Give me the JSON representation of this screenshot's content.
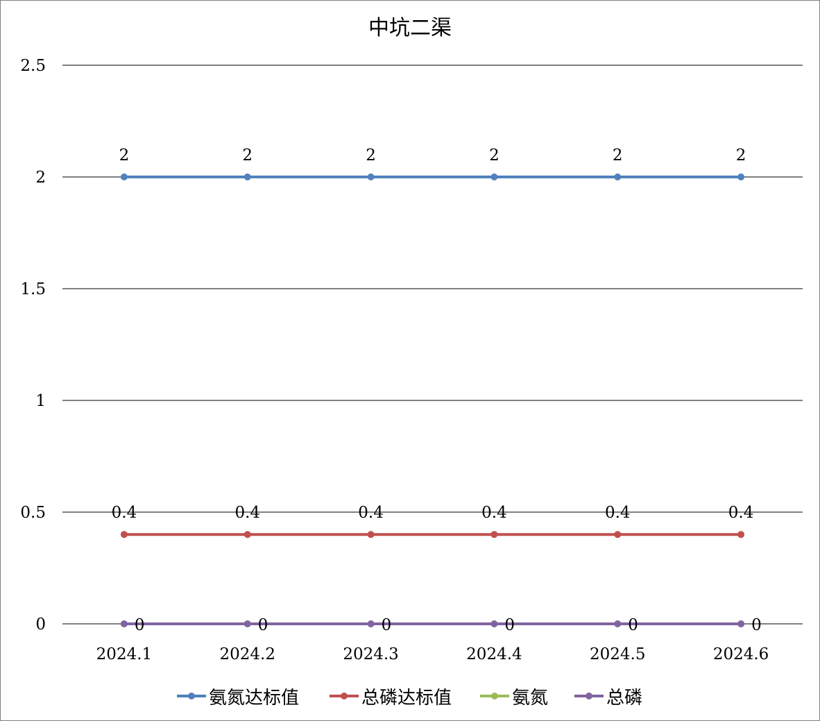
{
  "chart_data": {
    "type": "line",
    "title": "中坑二渠",
    "categories": [
      "2024.1",
      "2024.2",
      "2024.3",
      "2024.4",
      "2024.5",
      "2024.6"
    ],
    "y_ticks": [
      "0",
      "0.5",
      "1",
      "1.5",
      "2",
      "2.5"
    ],
    "ylim": [
      0,
      2.5
    ],
    "grid": true,
    "legend_position": "bottom",
    "series": [
      {
        "name": "氨氮达标值",
        "values": [
          2,
          2,
          2,
          2,
          2,
          2
        ],
        "color": "#4f81bd",
        "labels": [
          "2",
          "2",
          "2",
          "2",
          "2",
          "2"
        ],
        "label_position": "above"
      },
      {
        "name": "总磷达标值",
        "values": [
          0.4,
          0.4,
          0.4,
          0.4,
          0.4,
          0.4
        ],
        "color": "#c0504d",
        "labels": [
          "0.4",
          "0.4",
          "0.4",
          "0.4",
          "0.4",
          "0.4"
        ],
        "label_position": "above"
      },
      {
        "name": "氨氮",
        "values": [
          0,
          0,
          0,
          0,
          0,
          0
        ],
        "color": "#9bbb59",
        "labels": [],
        "label_position": "none"
      },
      {
        "name": "总磷",
        "values": [
          0,
          0,
          0,
          0,
          0,
          0
        ],
        "color": "#8064a2",
        "labels": [
          "0",
          "0",
          "0",
          "0",
          "0",
          "0"
        ],
        "label_position": "right"
      }
    ]
  }
}
